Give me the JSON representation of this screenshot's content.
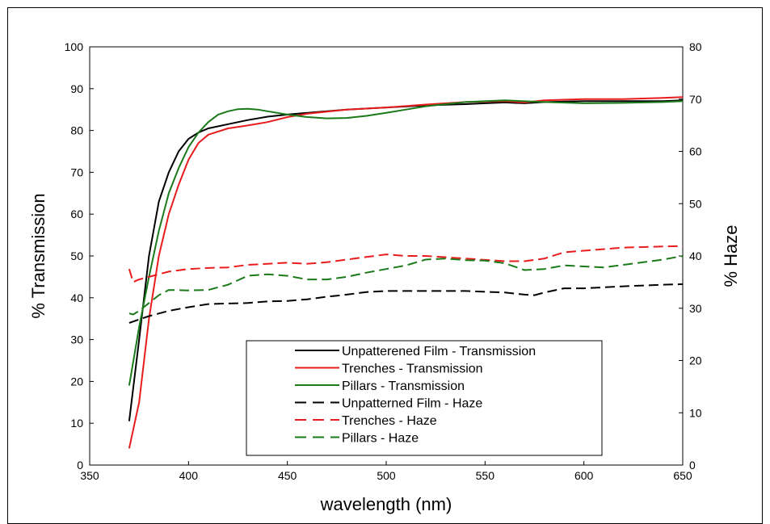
{
  "chart_data": {
    "type": "line",
    "xlabel": "wavelength (nm)",
    "ylabel": "% Transmission",
    "y2label": "% Haze",
    "xlim": [
      350,
      650
    ],
    "ylim": [
      0,
      100
    ],
    "y2lim": [
      0,
      80
    ],
    "xticks": [
      350,
      400,
      450,
      500,
      550,
      600,
      650
    ],
    "yticks": [
      0,
      10,
      20,
      30,
      40,
      50,
      60,
      70,
      80,
      90,
      100
    ],
    "y2ticks": [
      0,
      10,
      20,
      30,
      40,
      50,
      60,
      70,
      80
    ],
    "grid": false,
    "legend_position": "bottom-right",
    "series": [
      {
        "name": "Unpatterened Film - Transmission",
        "axis": "left",
        "dash": "solid",
        "color": "#000000",
        "x": [
          370,
          375,
          380,
          385,
          390,
          395,
          400,
          405,
          410,
          420,
          430,
          440,
          450,
          460,
          480,
          500,
          520,
          540,
          550,
          560,
          570,
          580,
          600,
          620,
          640,
          650
        ],
        "y": [
          10.5,
          30,
          50,
          63,
          70,
          75,
          78,
          79.5,
          80.5,
          81.5,
          82.5,
          83.3,
          83.8,
          84.2,
          85,
          85.5,
          86,
          86.3,
          86.5,
          86.7,
          86.5,
          86.8,
          87,
          87,
          87,
          87.2
        ]
      },
      {
        "name": "Trenches - Transmission",
        "axis": "left",
        "dash": "solid",
        "color": "#e81c1c",
        "x": [
          370,
          375,
          380,
          385,
          390,
          395,
          400,
          405,
          410,
          420,
          430,
          440,
          450,
          460,
          480,
          500,
          520,
          540,
          560,
          570,
          580,
          600,
          620,
          640,
          650
        ],
        "y": [
          4,
          15,
          35,
          50,
          60,
          67,
          73,
          77,
          79,
          80.5,
          81.2,
          82,
          83.2,
          84,
          85,
          85.5,
          86.2,
          86.8,
          87,
          86.7,
          87.2,
          87.5,
          87.5,
          87.8,
          88
        ]
      },
      {
        "name": "Pillars - Transmission",
        "axis": "left",
        "dash": "solid",
        "color": "#1a7a1a",
        "x": [
          370,
          375,
          380,
          385,
          390,
          395,
          400,
          405,
          410,
          415,
          420,
          425,
          430,
          435,
          440,
          450,
          460,
          470,
          480,
          490,
          500,
          510,
          520,
          540,
          560,
          580,
          600,
          620,
          640,
          650
        ],
        "y": [
          19,
          33,
          45,
          56,
          65,
          71,
          76,
          79.5,
          82,
          83.8,
          84.6,
          85.1,
          85.2,
          85,
          84.6,
          83.8,
          83.2,
          82.9,
          83,
          83.5,
          84.2,
          85,
          85.8,
          86.8,
          87.2,
          86.8,
          86.5,
          86.6,
          86.8,
          87
        ]
      },
      {
        "name": "Unpatterned Film - Haze",
        "axis": "right",
        "dash": "dashed",
        "color": "#000000",
        "x": [
          370,
          380,
          390,
          400,
          410,
          420,
          430,
          440,
          450,
          460,
          470,
          480,
          490,
          500,
          520,
          540,
          560,
          570,
          575,
          580,
          590,
          600,
          620,
          640,
          650
        ],
        "y": [
          27.2,
          28.5,
          29.5,
          30.2,
          30.8,
          30.9,
          31,
          31.3,
          31.4,
          31.7,
          32.2,
          32.6,
          33.1,
          33.3,
          33.3,
          33.3,
          33,
          32.6,
          32.5,
          33,
          33.8,
          33.8,
          34.2,
          34.5,
          34.6
        ]
      },
      {
        "name": "Trenches - Haze",
        "axis": "right",
        "dash": "dashed",
        "color": "#e81c1c",
        "x": [
          370,
          372,
          375,
          380,
          390,
          400,
          410,
          420,
          430,
          440,
          450,
          460,
          470,
          480,
          490,
          500,
          510,
          520,
          540,
          560,
          570,
          580,
          590,
          600,
          610,
          620,
          630,
          640,
          650
        ],
        "y": [
          37.5,
          35,
          35.5,
          36,
          37,
          37.5,
          37.7,
          37.8,
          38.3,
          38.5,
          38.7,
          38.5,
          38.8,
          39.3,
          39.8,
          40.3,
          40,
          40,
          39.5,
          39,
          39,
          39.5,
          40.7,
          41,
          41.3,
          41.6,
          41.7,
          41.8,
          41.9
        ]
      },
      {
        "name": "Pillars - Haze",
        "axis": "right",
        "dash": "dashed",
        "color": "#1a7a1a",
        "x": [
          370,
          372,
          375,
          380,
          385,
          390,
          400,
          410,
          420,
          430,
          440,
          450,
          460,
          470,
          480,
          490,
          500,
          510,
          520,
          530,
          540,
          550,
          560,
          570,
          580,
          590,
          600,
          610,
          620,
          630,
          640,
          650
        ],
        "y": [
          29,
          28.8,
          29.5,
          31,
          32.5,
          33.5,
          33.4,
          33.5,
          34.5,
          36.2,
          36.5,
          36.2,
          35.5,
          35.5,
          36,
          36.8,
          37.5,
          38.2,
          39.3,
          39.5,
          39.2,
          39.1,
          38.6,
          37.3,
          37.5,
          38.2,
          38,
          37.8,
          38.3,
          38.8,
          39.3,
          40
        ]
      }
    ]
  }
}
